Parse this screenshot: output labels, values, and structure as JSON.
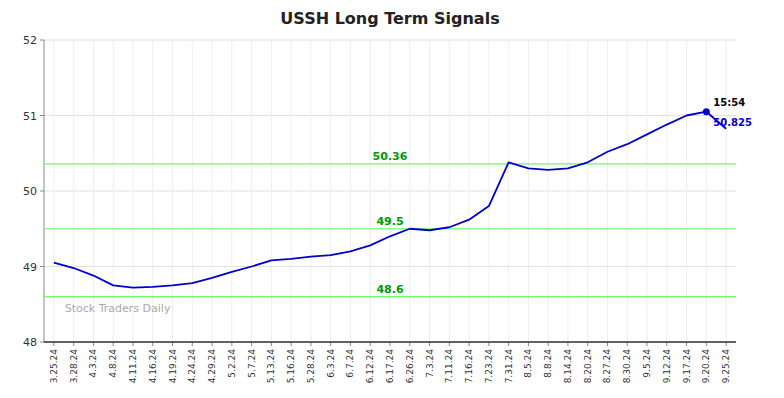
{
  "chart_data": {
    "type": "line",
    "title": "USSH Long Term Signals",
    "categories": [
      "3.25.24",
      "3.28.24",
      "4.3.24",
      "4.8.24",
      "4.11.24",
      "4.16.24",
      "4.19.24",
      "4.24.24",
      "4.29.24",
      "5.2.24",
      "5.7.24",
      "5.13.24",
      "5.16.24",
      "5.28.24",
      "6.3.24",
      "6.7.24",
      "6.12.24",
      "6.17.24",
      "6.26.24",
      "7.3.24",
      "7.11.24",
      "7.16.24",
      "7.23.24",
      "7.31.24",
      "8.5.24",
      "8.8.24",
      "8.14.24",
      "8.20.24",
      "8.27.24",
      "8.30.24",
      "9.5.24",
      "9.12.24",
      "9.17.24",
      "9.20.24",
      "9.25.24"
    ],
    "values": [
      49.05,
      48.98,
      48.88,
      48.75,
      48.72,
      48.73,
      48.75,
      48.78,
      48.85,
      48.93,
      49.0,
      49.08,
      49.1,
      49.13,
      49.15,
      49.2,
      49.28,
      49.4,
      49.5,
      49.48,
      49.52,
      49.62,
      49.8,
      50.38,
      50.3,
      50.28,
      50.3,
      50.38,
      50.52,
      50.62,
      50.75,
      50.88,
      51.0,
      51.05,
      50.825
    ],
    "color": "#0000cc",
    "ylim": [
      48,
      52
    ],
    "yticks": [
      48,
      49,
      50,
      51,
      52
    ],
    "grid": true,
    "hlines": [
      {
        "value": 48.6,
        "label": "48.6",
        "color": "#66ff66"
      },
      {
        "value": 49.5,
        "label": "49.5",
        "color": "#66ff66"
      },
      {
        "value": 50.36,
        "label": "50.36",
        "color": "#66ff66"
      }
    ],
    "annotations": [
      {
        "text": "15:54",
        "x": "9.20.24"
      },
      {
        "text": "50.825",
        "x": "9.20.24"
      },
      {
        "text": "Stock Traders Daily"
      }
    ]
  }
}
